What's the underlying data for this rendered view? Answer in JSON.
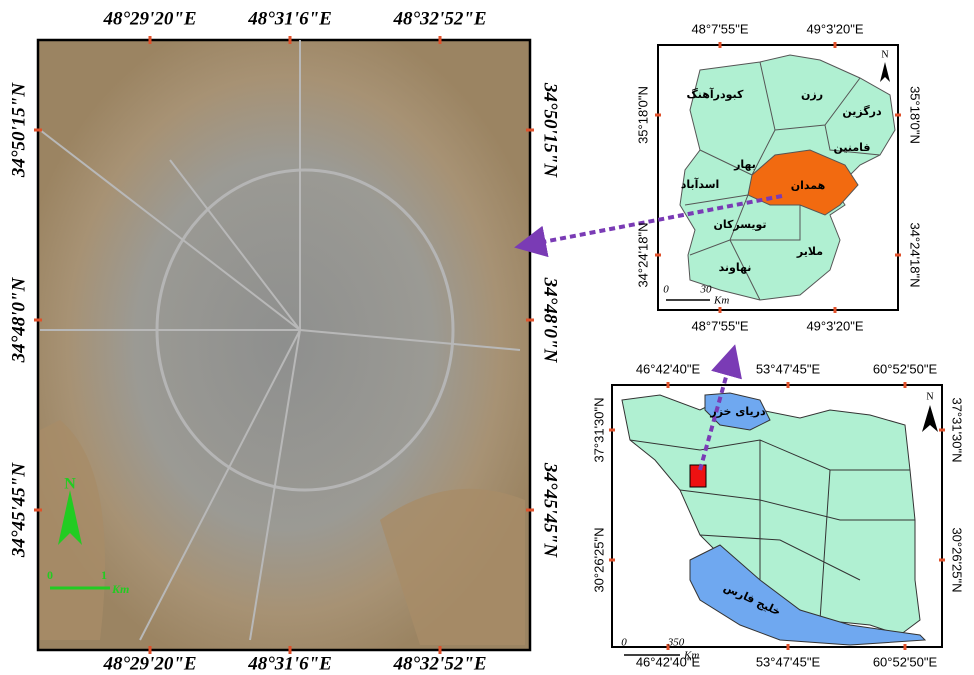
{
  "satellite_map": {
    "lon_labels": [
      "48°29'20\"E",
      "48°31'6\"E",
      "48°32'52\"E"
    ],
    "lat_labels": [
      "34°50'15\"N",
      "34°48'0\"N",
      "34°45'45\"N"
    ],
    "north": "N",
    "scale": {
      "start": 0,
      "end": 1,
      "unit": "Km"
    }
  },
  "province_map": {
    "lon_labels": [
      "48°7'55\"E",
      "49°3'20\"E"
    ],
    "lat_labels": [
      "35°18'0\"N",
      "34°24'18\"N"
    ],
    "north": "N",
    "scale": {
      "start": 0,
      "end": 30,
      "unit": "Km"
    },
    "regions": [
      "کبودرآهنگ",
      "رزن",
      "درگزین",
      "فامنین",
      "بهار",
      "همدان",
      "اسدآباد",
      "تویسرکان",
      "ملایر",
      "نهاوند"
    ]
  },
  "iran_map": {
    "lon_labels": [
      "46°42'40\"E",
      "53°47'45\"E",
      "60°52'50\"E"
    ],
    "lat_labels": [
      "37°31'30\"N",
      "30°26'25\"N"
    ],
    "north": "N",
    "scale": {
      "start": 0,
      "end": 350,
      "unit": "Km"
    },
    "water_labels": [
      "دریای خزر",
      "خلیج فارس"
    ]
  }
}
